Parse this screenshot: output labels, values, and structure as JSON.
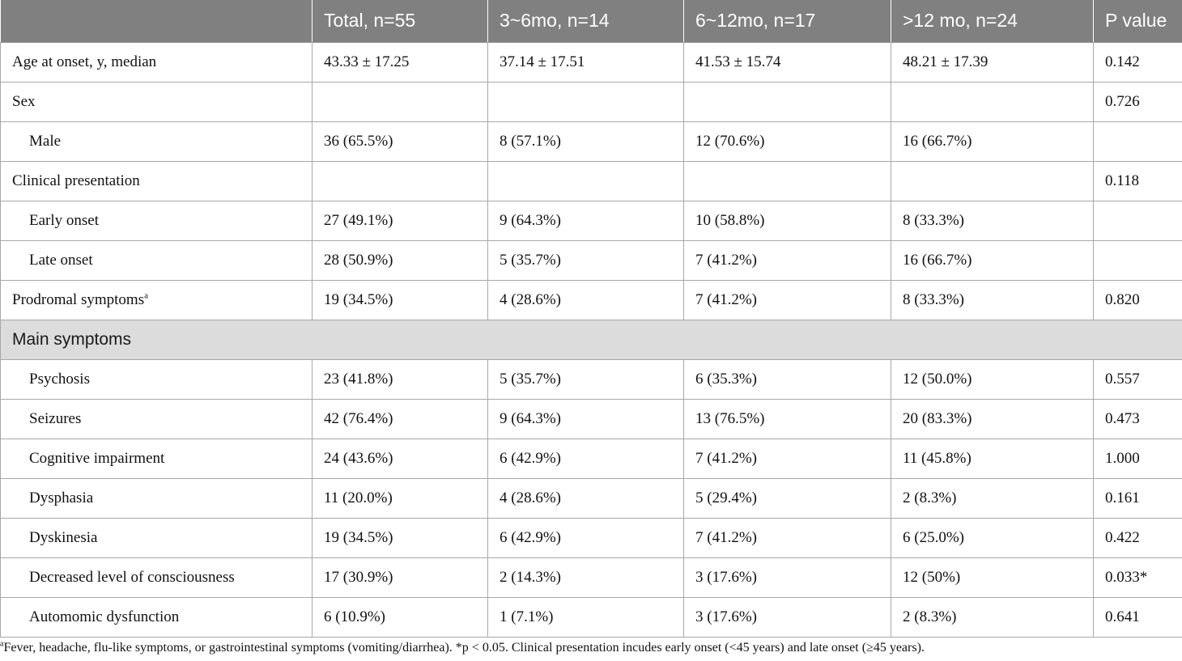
{
  "table": {
    "headers": [
      "",
      "Total, n=55",
      "3~6mo, n=14",
      "6~12mo, n=17",
      ">12 mo, n=24",
      "P value"
    ],
    "rows": [
      {
        "label": "Age at onset, y, median",
        "cells": [
          "43.33 ± 17.25",
          "37.14 ± 17.51",
          "41.53 ± 15.74",
          "48.21 ± 17.39",
          "0.142"
        ]
      },
      {
        "label": "Sex",
        "cells": [
          "",
          "",
          "",
          "",
          "0.726"
        ]
      },
      {
        "label": "Male",
        "cells": [
          "36 (65.5%)",
          "8 (57.1%)",
          "12 (70.6%)",
          "16 (66.7%)",
          ""
        ]
      },
      {
        "label": "Clinical presentation",
        "cells": [
          "",
          "",
          "",
          "",
          "0.118"
        ]
      },
      {
        "label": "Early onset",
        "cells": [
          "27 (49.1%)",
          "9 (64.3%)",
          "10 (58.8%)",
          "8 (33.3%)",
          ""
        ]
      },
      {
        "label": "Late onset",
        "cells": [
          "28 (50.9%)",
          "5 (35.7%)",
          "7 (41.2%)",
          "16 (66.7%)",
          ""
        ]
      },
      {
        "label": "Prodromal symptoms",
        "label_sup": "a",
        "cells": [
          "19 (34.5%)",
          "4 (28.6%)",
          "7 (41.2%)",
          "8 (33.3%)",
          "0.820"
        ]
      }
    ],
    "section_title": "Main symptoms",
    "symptom_rows": [
      {
        "label": "Psychosis",
        "cells": [
          "23 (41.8%)",
          "5 (35.7%)",
          "6 (35.3%)",
          "12 (50.0%)",
          "0.557"
        ]
      },
      {
        "label": "Seizures",
        "cells": [
          "42 (76.4%)",
          "9 (64.3%)",
          "13 (76.5%)",
          "20 (83.3%)",
          "0.473"
        ]
      },
      {
        "label": "Cognitive impairment",
        "cells": [
          "24 (43.6%)",
          "6 (42.9%)",
          "7 (41.2%)",
          "11 (45.8%)",
          "1.000"
        ]
      },
      {
        "label": "Dysphasia",
        "cells": [
          "11 (20.0%)",
          "4 (28.6%)",
          "5 (29.4%)",
          "2 (8.3%)",
          "0.161"
        ]
      },
      {
        "label": "Dyskinesia",
        "cells": [
          "19 (34.5%)",
          "6 (42.9%)",
          "7 (41.2%)",
          "6 (25.0%)",
          "0.422"
        ]
      },
      {
        "label": "Decreased level of consciousness",
        "cells": [
          "17 (30.9%)",
          "2 (14.3%)",
          "3 (17.6%)",
          "12 (50%)",
          "0.033*"
        ]
      },
      {
        "label": "Automomic dysfunction",
        "cells": [
          "6 (10.9%)",
          "1 (7.1%)",
          "3 (17.6%)",
          "2 (8.3%)",
          "0.641"
        ]
      }
    ]
  },
  "footnote": {
    "marker": "a",
    "text": "Fever, headache, flu-like symptoms, or gastrointestinal symptoms (vomiting/diarrhea). *p < 0.05. Clinical presentation incudes early onset (<45 years) and late onset (≥45 years)."
  }
}
